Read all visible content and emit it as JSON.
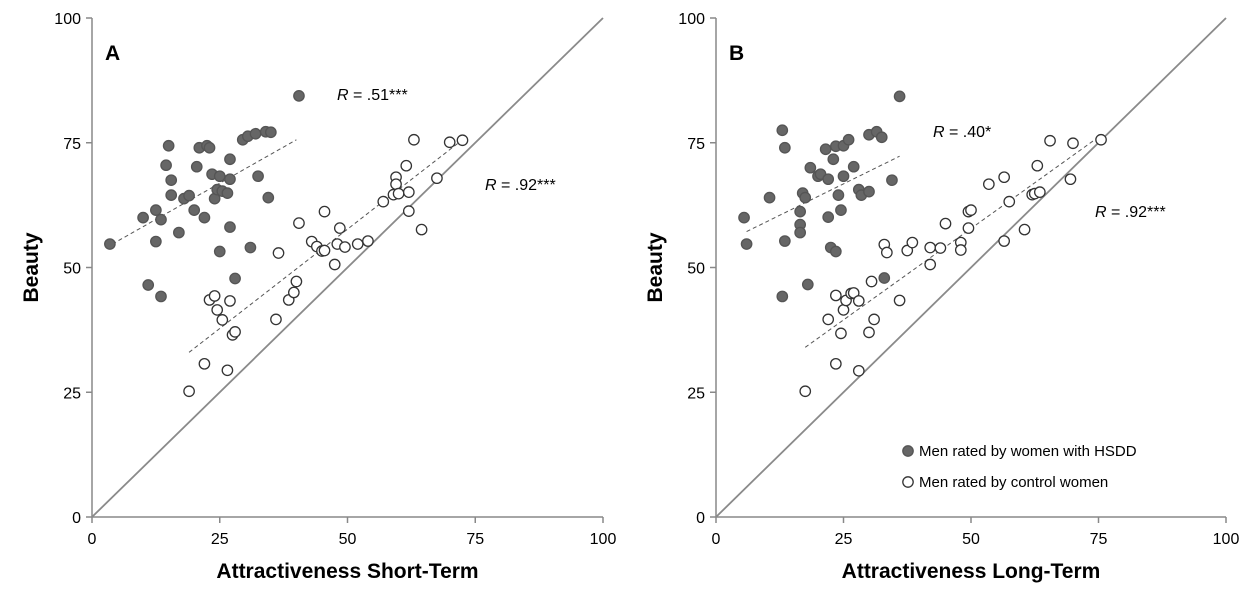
{
  "chart_data": [
    {
      "type": "scatter",
      "panel_label": "A",
      "xlabel": "Attractiveness Short-Term",
      "ylabel": "Beauty",
      "xlim": [
        0,
        100
      ],
      "ylim": [
        0,
        100
      ],
      "xticks": [
        "0",
        "25",
        "50",
        "75",
        "100"
      ],
      "yticks": [
        "0",
        "25",
        "50",
        "75",
        "100"
      ],
      "identity_line": true,
      "series": [
        {
          "marker": "filled",
          "color": "#666666",
          "points": [
            [
              3.5,
              54.7
            ],
            [
              10,
              60
            ],
            [
              11,
              46.5
            ],
            [
              12.5,
              61.5
            ],
            [
              12.5,
              55.2
            ],
            [
              13.5,
              44.2
            ],
            [
              13.5,
              59.6
            ],
            [
              14.5,
              70.5
            ],
            [
              15,
              74.4
            ],
            [
              15.5,
              64.5
            ],
            [
              15.5,
              67.5
            ],
            [
              17,
              57
            ],
            [
              18,
              63.8
            ],
            [
              19,
              64.4
            ],
            [
              20,
              61.5
            ],
            [
              20.5,
              70.2
            ],
            [
              21,
              74
            ],
            [
              22,
              60
            ],
            [
              22.5,
              74.4
            ],
            [
              23,
              74
            ],
            [
              23.5,
              68.7
            ],
            [
              24,
              63.8
            ],
            [
              24.5,
              65.6
            ],
            [
              25,
              53.2
            ],
            [
              25,
              68.3
            ],
            [
              25.5,
              65.3
            ],
            [
              26.5,
              64.9
            ],
            [
              27,
              71.7
            ],
            [
              27,
              67.7
            ],
            [
              27,
              58.1
            ],
            [
              28,
              47.8
            ],
            [
              29.5,
              75.6
            ],
            [
              30.5,
              76.3
            ],
            [
              31,
              54
            ],
            [
              32,
              76.8
            ],
            [
              32.5,
              68.3
            ],
            [
              34,
              77.2
            ],
            [
              34.5,
              64
            ],
            [
              35,
              77.1
            ],
            [
              40.5,
              84.4
            ]
          ],
          "fit": [
            [
              4,
              54.7
            ],
            [
              40,
              75.6
            ]
          ],
          "r_label": "R = .51***"
        },
        {
          "marker": "open",
          "color": "#666666",
          "points": [
            [
              19,
              25.2
            ],
            [
              22,
              30.7
            ],
            [
              23,
              43.5
            ],
            [
              24,
              44.3
            ],
            [
              24.5,
              41.5
            ],
            [
              25.5,
              39.5
            ],
            [
              26.5,
              29.4
            ],
            [
              27,
              43.3
            ],
            [
              27.5,
              36.5
            ],
            [
              28,
              37.1
            ],
            [
              36,
              39.6
            ],
            [
              36.5,
              52.9
            ],
            [
              38.5,
              43.5
            ],
            [
              39.5,
              45
            ],
            [
              40,
              47.2
            ],
            [
              40.5,
              58.9
            ],
            [
              43,
              55.2
            ],
            [
              44,
              54.2
            ],
            [
              45,
              53.3
            ],
            [
              45.5,
              53.4
            ],
            [
              45.5,
              61.2
            ],
            [
              47.5,
              50.6
            ],
            [
              48,
              54.7
            ],
            [
              48.5,
              57.9
            ],
            [
              49.5,
              54.1
            ],
            [
              52,
              54.7
            ],
            [
              54,
              55.3
            ],
            [
              57,
              63.2
            ],
            [
              59,
              64.6
            ],
            [
              59.5,
              68.1
            ],
            [
              59.5,
              66.7
            ],
            [
              60,
              64.8
            ],
            [
              61.5,
              70.4
            ],
            [
              62,
              65.1
            ],
            [
              62,
              61.3
            ],
            [
              63,
              75.6
            ],
            [
              64.5,
              57.6
            ],
            [
              67.5,
              67.9
            ],
            [
              70,
              75.1
            ],
            [
              72.5,
              75.5
            ]
          ],
          "fit": [
            [
              19,
              33
            ],
            [
              73,
              76
            ]
          ],
          "r_label": "R = .92***"
        }
      ]
    },
    {
      "type": "scatter",
      "panel_label": "B",
      "xlabel": "Attractiveness Long-Term",
      "ylabel": "Beauty",
      "xlim": [
        0,
        100
      ],
      "ylim": [
        0,
        100
      ],
      "xticks": [
        "0",
        "25",
        "50",
        "75",
        "100"
      ],
      "yticks": [
        "0",
        "25",
        "50",
        "75",
        "100"
      ],
      "identity_line": true,
      "legend_position": "bottom-right",
      "series": [
        {
          "name": "Men rated by women with HSDD",
          "marker": "filled",
          "color": "#666666",
          "points": [
            [
              5.5,
              60
            ],
            [
              6,
              54.7
            ],
            [
              10.5,
              64
            ],
            [
              13,
              77.5
            ],
            [
              13.5,
              74
            ],
            [
              13.5,
              55.3
            ],
            [
              13,
              44.2
            ],
            [
              16.5,
              61.2
            ],
            [
              16.5,
              58.6
            ],
            [
              16.5,
              57
            ],
            [
              17,
              64.9
            ],
            [
              17.5,
              64
            ],
            [
              18.5,
              70
            ],
            [
              18,
              46.6
            ],
            [
              20,
              68.3
            ],
            [
              20.5,
              68.7
            ],
            [
              21.5,
              73.7
            ],
            [
              22,
              67.7
            ],
            [
              22,
              60.1
            ],
            [
              22.5,
              54
            ],
            [
              23,
              71.7
            ],
            [
              23.5,
              74.3
            ],
            [
              23.5,
              53.2
            ],
            [
              24,
              64.5
            ],
            [
              24.5,
              61.5
            ],
            [
              25,
              74.4
            ],
            [
              25,
              68.3
            ],
            [
              26,
              75.6
            ],
            [
              27,
              70.2
            ],
            [
              28,
              65.6
            ],
            [
              28.5,
              64.5
            ],
            [
              30,
              76.6
            ],
            [
              30,
              65.2
            ],
            [
              31.5,
              77.2
            ],
            [
              32.5,
              76.1
            ],
            [
              33,
              47.9
            ],
            [
              34.5,
              67.5
            ],
            [
              36,
              84.3
            ]
          ],
          "fit": [
            [
              6,
              57.2
            ],
            [
              36,
              72.3
            ]
          ],
          "r_label": "R = .40*"
        },
        {
          "name": "Men rated by control women",
          "marker": "open",
          "color": "#666666",
          "points": [
            [
              17.5,
              25.2
            ],
            [
              22,
              39.6
            ],
            [
              23.5,
              30.7
            ],
            [
              23.5,
              44.4
            ],
            [
              24.5,
              36.8
            ],
            [
              25,
              41.5
            ],
            [
              25.5,
              43.4
            ],
            [
              26.5,
              44.8
            ],
            [
              27,
              44.9
            ],
            [
              28,
              29.3
            ],
            [
              28,
              43.3
            ],
            [
              30,
              37
            ],
            [
              30.5,
              47.2
            ],
            [
              31,
              39.6
            ],
            [
              33,
              54.6
            ],
            [
              33.5,
              53
            ],
            [
              36,
              43.4
            ],
            [
              37.5,
              53.4
            ],
            [
              38.5,
              55
            ],
            [
              42,
              54
            ],
            [
              42,
              50.6
            ],
            [
              44,
              53.9
            ],
            [
              45,
              58.8
            ],
            [
              48,
              55
            ],
            [
              48,
              53.5
            ],
            [
              49.5,
              61.2
            ],
            [
              50,
              61.5
            ],
            [
              49.5,
              57.9
            ],
            [
              53.5,
              66.7
            ],
            [
              56.5,
              68.1
            ],
            [
              56.5,
              55.3
            ],
            [
              57.5,
              63.2
            ],
            [
              60.5,
              57.6
            ],
            [
              62,
              64.6
            ],
            [
              62.5,
              64.8
            ],
            [
              63,
              70.4
            ],
            [
              63.5,
              65.1
            ],
            [
              65.5,
              75.4
            ],
            [
              69.5,
              67.7
            ],
            [
              70,
              74.9
            ],
            [
              75.5,
              75.6
            ]
          ],
          "fit": [
            [
              17.5,
              34
            ],
            [
              75.5,
              76.5
            ]
          ],
          "r_label": "R = .92***"
        }
      ]
    }
  ]
}
